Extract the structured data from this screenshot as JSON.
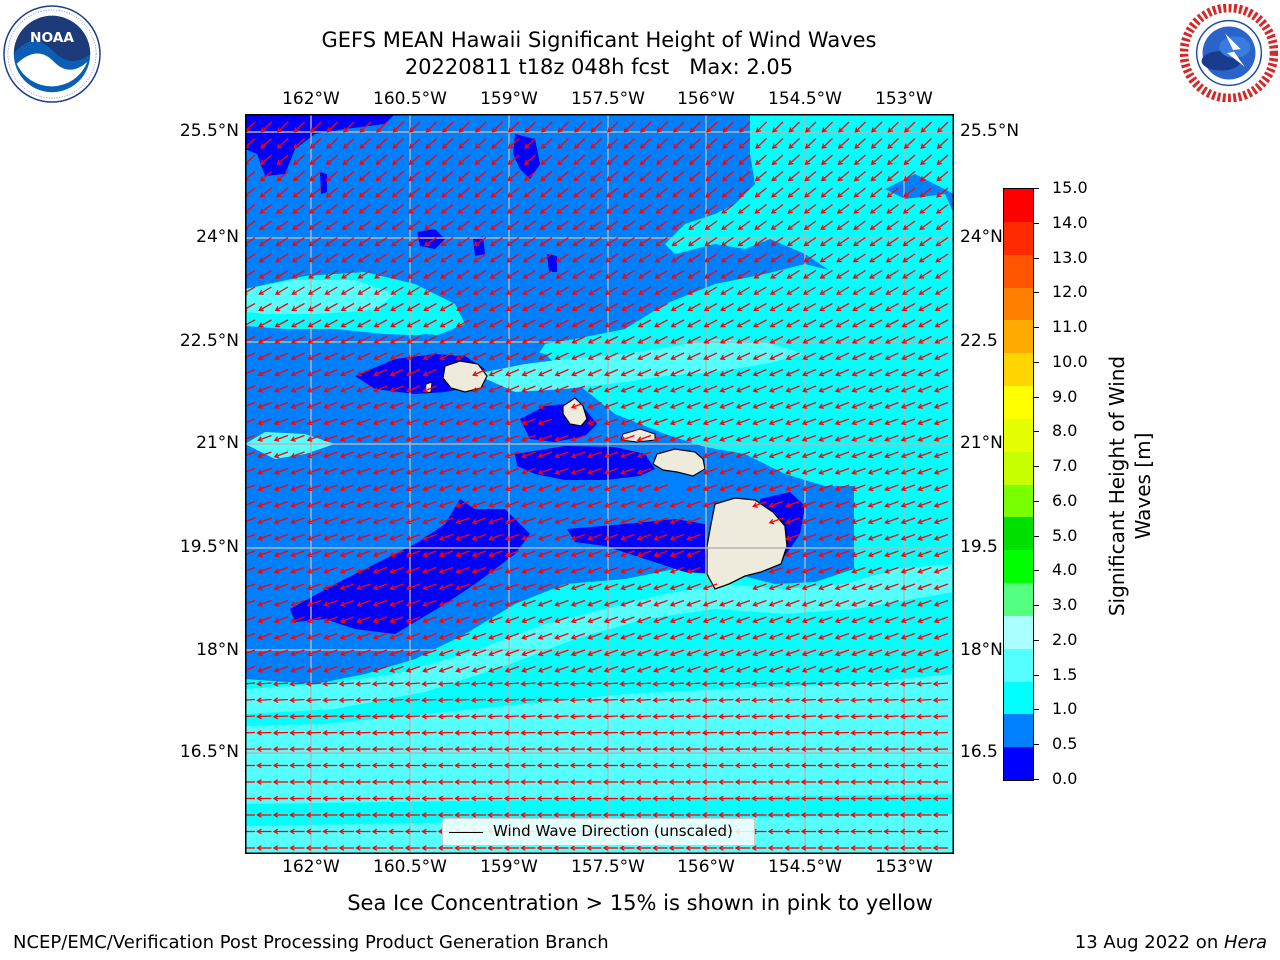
{
  "header": {
    "title_line1": "GEFS MEAN Hawaii Significant Height of Wind Waves",
    "title_line2": "20220811 t18z 048h fcst   Max: 2.05"
  },
  "logos": {
    "left": "noaa-logo",
    "left_text": "NOAA",
    "left_ring_text": "NATIONAL OCEANIC AND ATMOSPHERIC ADMINISTRATION · U.S. DEPARTMENT OF COMMERCE",
    "right": "nws-logo",
    "right_ring_text": "NATIONAL WEATHER SERVICE"
  },
  "map": {
    "region": "Hawaii",
    "lon_ticks": [
      "162°W",
      "160.5°W",
      "159°W",
      "157.5°W",
      "156°W",
      "154.5°W",
      "153°W"
    ],
    "lat_ticks_left": [
      "25.5°N",
      "24°N",
      "22.5°N",
      "21°N",
      "19.5°N",
      "18°N",
      "16.5°N"
    ],
    "lat_ticks_right": [
      "25.5°N",
      "24°N",
      "22.5",
      "21°N",
      "19.5",
      "18°N",
      "16.5"
    ],
    "legend_label": "Wind Wave Direction (unscaled)",
    "wave_direction": "from east-northeast toward west-southwest (trade-wind swell)",
    "colors": {
      "land": "#eeebdc",
      "coastline": "#000000",
      "arrows": "#ff0000",
      "grid": "#b5b5b5"
    }
  },
  "colorbar": {
    "label_line1": "Significant Height of Wind",
    "label_line2": "Waves [m]",
    "ticks": [
      "15.0",
      "14.0",
      "13.0",
      "12.0",
      "11.0",
      "10.0",
      "9.0",
      "8.0",
      "7.0",
      "6.0",
      "5.0",
      "4.0",
      "3.0",
      "2.0",
      "1.5",
      "1.0",
      "0.5",
      "0.0"
    ],
    "colors": [
      "#ff0000",
      "#ff2a00",
      "#ff5500",
      "#ff8000",
      "#ffaa00",
      "#ffd400",
      "#ffff00",
      "#e6ff00",
      "#c8ff00",
      "#78ff00",
      "#00e000",
      "#00ff00",
      "#55ff80",
      "#aaffff",
      "#55ffff",
      "#00ffff",
      "#0080ff",
      "#0000ff"
    ]
  },
  "subtitle": "Sea Ice Concentration > 15% is shown in pink to yellow",
  "footer": {
    "left": "NCEP/EMC/Verification Post Processing Product Generation Branch",
    "date": "13 Aug 2022 on ",
    "host": "Hera"
  }
}
